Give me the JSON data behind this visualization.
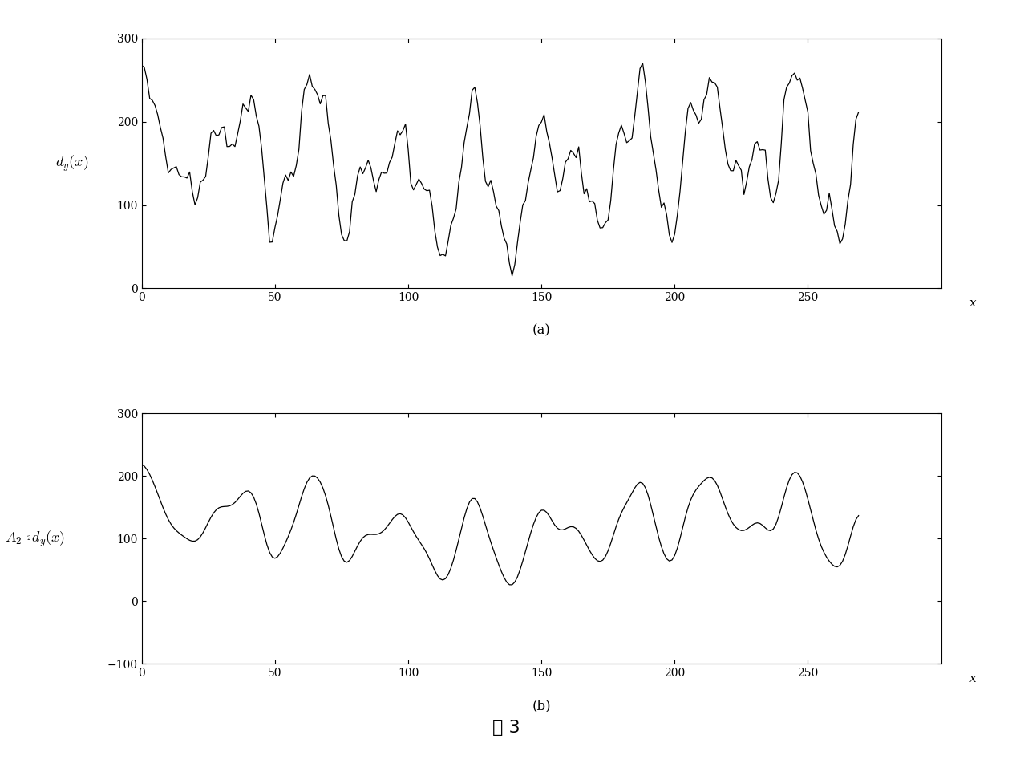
{
  "title_bottom": "图 3",
  "label_a": "(a)",
  "label_b": "(b)",
  "ylabel_a": "$d_y(x)$",
  "ylabel_b": "$A_{2^{-2}}d_y(x)$",
  "xlim": [
    0,
    300
  ],
  "ylim_a": [
    0,
    300
  ],
  "ylim_b": [
    -100,
    300
  ],
  "yticks_a": [
    0,
    100,
    200,
    300
  ],
  "yticks_b": [
    -100,
    0,
    100,
    200,
    300
  ],
  "xticks": [
    0,
    50,
    100,
    150,
    200,
    250
  ],
  "line_color": "#000000",
  "background_color": "#ffffff",
  "fig_width": 12.62,
  "fig_height": 9.51
}
